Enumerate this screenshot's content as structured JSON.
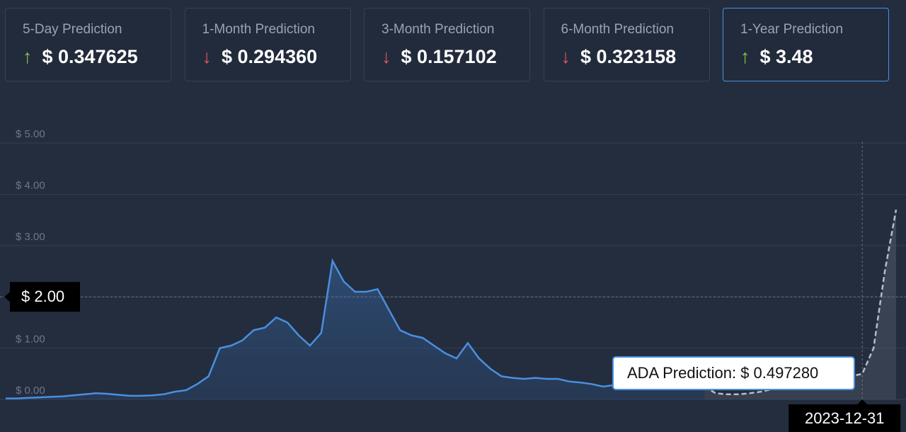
{
  "cards": [
    {
      "label": "5-Day Prediction",
      "arrow": "↑",
      "value": "$ 0.347625"
    },
    {
      "label": "1-Month Prediction",
      "arrow": "↓",
      "value": "$ 0.294360"
    },
    {
      "label": "3-Month Prediction",
      "arrow": "↓",
      "value": "$ 0.157102"
    },
    {
      "label": "6-Month Prediction",
      "arrow": "↓",
      "value": "$ 0.323158"
    },
    {
      "label": "1-Year Prediction",
      "arrow": "↑",
      "value": "$ 3.48"
    }
  ],
  "chart_data": {
    "type": "line",
    "categories": [
      null,
      null,
      null,
      null,
      null,
      null,
      null,
      null,
      null,
      null,
      null,
      null,
      null,
      null,
      null,
      null,
      null,
      null,
      null,
      null,
      null,
      null,
      null,
      null,
      null,
      null,
      null,
      null,
      null,
      null,
      null,
      null,
      null,
      null,
      null,
      null,
      null,
      null,
      null,
      null,
      null,
      null,
      null,
      null,
      null,
      null,
      null,
      null,
      null,
      null,
      null,
      null,
      null,
      null,
      null,
      null,
      null,
      null,
      null,
      null,
      null,
      null,
      null,
      null,
      null,
      null,
      null,
      null,
      null,
      null,
      null,
      null,
      null,
      null,
      null,
      null,
      "2023-12-31",
      null,
      null,
      null
    ],
    "series": [
      {
        "color": "#4a8fe0",
        "values": [
          0.02,
          0.02,
          0.03,
          0.04,
          0.05,
          0.06,
          0.08,
          0.1,
          0.12,
          0.11,
          0.09,
          0.07,
          0.07,
          0.08,
          0.1,
          0.15,
          0.18,
          0.3,
          0.45,
          1.0,
          1.05,
          1.15,
          1.35,
          1.4,
          1.6,
          1.5,
          1.25,
          1.05,
          1.3,
          2.7,
          2.3,
          2.1,
          2.1,
          2.15,
          1.75,
          1.35,
          1.25,
          1.2,
          1.05,
          0.9,
          0.8,
          1.1,
          0.8,
          0.6,
          0.45,
          0.42,
          0.4,
          0.42,
          0.4,
          0.4,
          0.35,
          0.33,
          0.3,
          0.25,
          0.28,
          0.3,
          0.3,
          0.28,
          0.27,
          0.27,
          0.26,
          0.25,
          0.25,
          null,
          null,
          null,
          null,
          null,
          null,
          null,
          null,
          null,
          null,
          null,
          null,
          null,
          null,
          null,
          null,
          null
        ]
      },
      {
        "color": "#b8bcc4",
        "values": [
          null,
          null,
          null,
          null,
          null,
          null,
          null,
          null,
          null,
          null,
          null,
          null,
          null,
          null,
          null,
          null,
          null,
          null,
          null,
          null,
          null,
          null,
          null,
          null,
          null,
          null,
          null,
          null,
          null,
          null,
          null,
          null,
          null,
          null,
          null,
          null,
          null,
          null,
          null,
          null,
          null,
          null,
          null,
          null,
          null,
          null,
          null,
          null,
          null,
          null,
          null,
          null,
          null,
          null,
          null,
          null,
          null,
          null,
          null,
          null,
          null,
          null,
          0.25,
          0.12,
          0.1,
          0.1,
          0.12,
          0.15,
          0.2,
          0.25,
          0.3,
          0.28,
          0.3,
          0.32,
          0.38,
          0.45,
          0.5,
          1.0,
          2.5,
          3.7
        ]
      }
    ],
    "ylim": [
      0,
      5
    ],
    "yticks": [
      {
        "value": 0,
        "label": "$ 0.00"
      },
      {
        "value": 1,
        "label": "$ 1.00"
      },
      {
        "value": 2,
        "label": "$ 2.00"
      },
      {
        "value": 3,
        "label": "$ 3.00"
      },
      {
        "value": 4,
        "label": "$ 4.00"
      },
      {
        "value": 5,
        "label": "$ 5.00"
      }
    ],
    "grid": true,
    "crosshair_y": {
      "value": 2,
      "label": "$ 2.00"
    },
    "tooltip": "ADA Prediction: $ 0.497280"
  }
}
